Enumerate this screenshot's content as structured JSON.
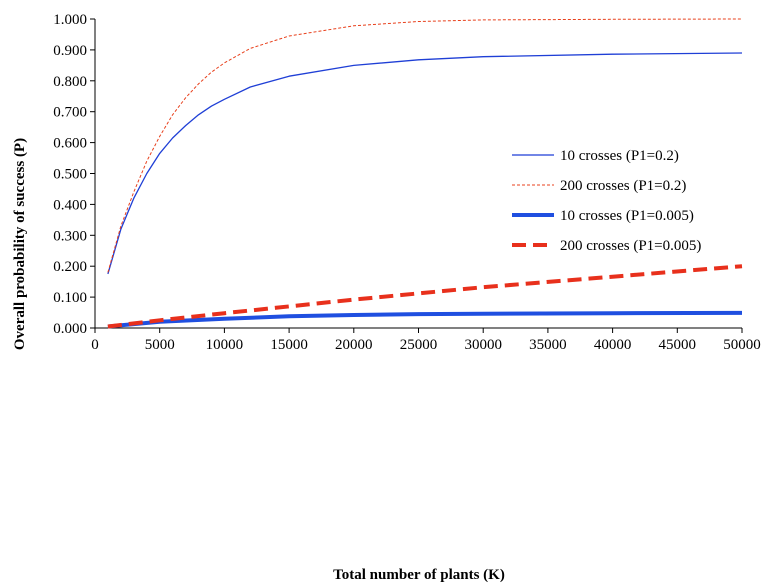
{
  "chart_data": {
    "type": "line",
    "xlabel": "Total number of plants (K)",
    "ylabel": "Overall probability of success (P)",
    "xlim": [
      0,
      50000
    ],
    "ylim": [
      0,
      1
    ],
    "x_ticks": [
      "0",
      "5000",
      "10000",
      "15000",
      "20000",
      "25000",
      "30000",
      "35000",
      "40000",
      "45000",
      "50000"
    ],
    "y_ticks": [
      "0.000",
      "0.100",
      "0.200",
      "0.300",
      "0.400",
      "0.500",
      "0.600",
      "0.700",
      "0.800",
      "0.900",
      "1.000"
    ],
    "x_tick_values": [
      0,
      5000,
      10000,
      15000,
      20000,
      25000,
      30000,
      35000,
      40000,
      45000,
      50000
    ],
    "y_tick_values": [
      0,
      0.1,
      0.2,
      0.3,
      0.4,
      0.5,
      0.6,
      0.7,
      0.8,
      0.9,
      1.0
    ],
    "grid": false,
    "legend_position": "right",
    "series": [
      {
        "name": "10 crosses  (P1=0.2)",
        "color": "#1f3fd6",
        "style": "solid-thin",
        "x": [
          1000,
          2000,
          3000,
          4000,
          5000,
          6000,
          7000,
          8000,
          9000,
          10000,
          12000,
          15000,
          20000,
          25000,
          30000,
          40000,
          50000
        ],
        "y": [
          0.175,
          0.32,
          0.42,
          0.5,
          0.565,
          0.615,
          0.655,
          0.69,
          0.718,
          0.74,
          0.78,
          0.815,
          0.85,
          0.868,
          0.878,
          0.886,
          0.89
        ]
      },
      {
        "name": "200 crosses (P1=0.2)",
        "color": "#e8401c",
        "style": "dashed-thin",
        "x": [
          1000,
          2000,
          3000,
          4000,
          5000,
          6000,
          7000,
          8000,
          9000,
          10000,
          12000,
          15000,
          20000,
          25000,
          30000,
          40000,
          50000
        ],
        "y": [
          0.18,
          0.33,
          0.44,
          0.54,
          0.62,
          0.69,
          0.745,
          0.79,
          0.828,
          0.858,
          0.905,
          0.945,
          0.978,
          0.992,
          0.997,
          0.999,
          1.0
        ]
      },
      {
        "name": "10 crosses  (P1=0.005)",
        "color": "#1f4fe0",
        "style": "solid-thick",
        "x": [
          1000,
          5000,
          10000,
          15000,
          20000,
          25000,
          30000,
          40000,
          50000
        ],
        "y": [
          0.005,
          0.02,
          0.03,
          0.038,
          0.042,
          0.045,
          0.046,
          0.048,
          0.049
        ]
      },
      {
        "name": "200 crosses (P1=0.005)",
        "color": "#e8301c",
        "style": "dashed-thick",
        "x": [
          1000,
          5000,
          10000,
          15000,
          20000,
          25000,
          30000,
          40000,
          50000
        ],
        "y": [
          0.005,
          0.025,
          0.048,
          0.07,
          0.092,
          0.112,
          0.132,
          0.166,
          0.2
        ]
      }
    ]
  }
}
